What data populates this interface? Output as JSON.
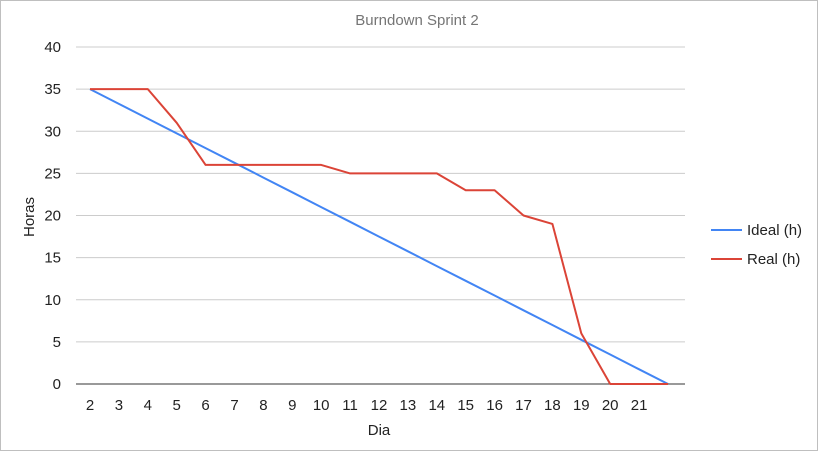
{
  "chart_data": {
    "type": "line",
    "title": "Burndown Sprint 2",
    "xlabel": "Dia",
    "ylabel": "Horas",
    "x": [
      2,
      3,
      4,
      5,
      6,
      7,
      8,
      9,
      10,
      11,
      12,
      13,
      14,
      15,
      16,
      17,
      18,
      19,
      20,
      21,
      22
    ],
    "x_tick_labels": [
      "2",
      "3",
      "4",
      "5",
      "6",
      "7",
      "8",
      "9",
      "10",
      "11",
      "12",
      "13",
      "14",
      "15",
      "16",
      "17",
      "18",
      "19",
      "20",
      "21"
    ],
    "y_ticks": [
      0,
      5,
      10,
      15,
      20,
      25,
      30,
      35,
      40
    ],
    "ylim": [
      0,
      40
    ],
    "grid": true,
    "legend": "right",
    "series": [
      {
        "name": "Ideal (h)",
        "color": "#4285f4",
        "values": [
          35,
          33.25,
          31.5,
          29.75,
          28,
          26.25,
          24.5,
          22.75,
          21,
          19.25,
          17.5,
          15.75,
          14,
          12.25,
          10.5,
          8.75,
          7,
          5.25,
          3.5,
          1.75,
          0
        ]
      },
      {
        "name": "Real (h)",
        "color": "#db4437",
        "values": [
          35,
          35,
          35,
          31,
          26,
          26,
          26,
          26,
          26,
          25,
          25,
          25,
          25,
          23,
          23,
          20,
          19,
          6,
          0,
          0,
          0
        ]
      }
    ]
  }
}
